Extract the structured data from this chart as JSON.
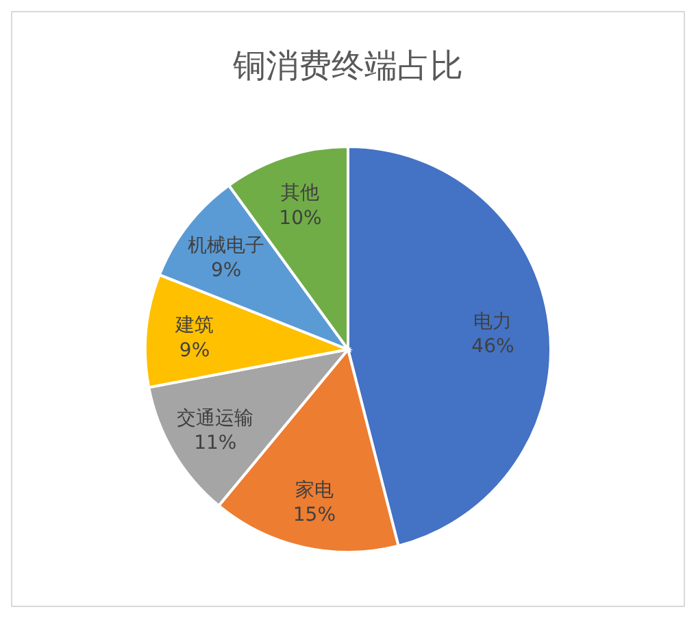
{
  "chart_data": {
    "type": "pie",
    "title": "铜消费终端占比",
    "categories": [
      "电力",
      "家电",
      "交通运输",
      "建筑",
      "机械电子",
      "其他"
    ],
    "values": [
      46,
      15,
      11,
      9,
      9,
      10
    ],
    "colors": [
      "#4472c4",
      "#ed7d31",
      "#a5a5a5",
      "#ffc000",
      "#5b9bd5",
      "#70ad47"
    ],
    "value_labels": [
      "46%",
      "15%",
      "11%",
      "9%",
      "9%",
      "10%"
    ],
    "legend": false
  }
}
